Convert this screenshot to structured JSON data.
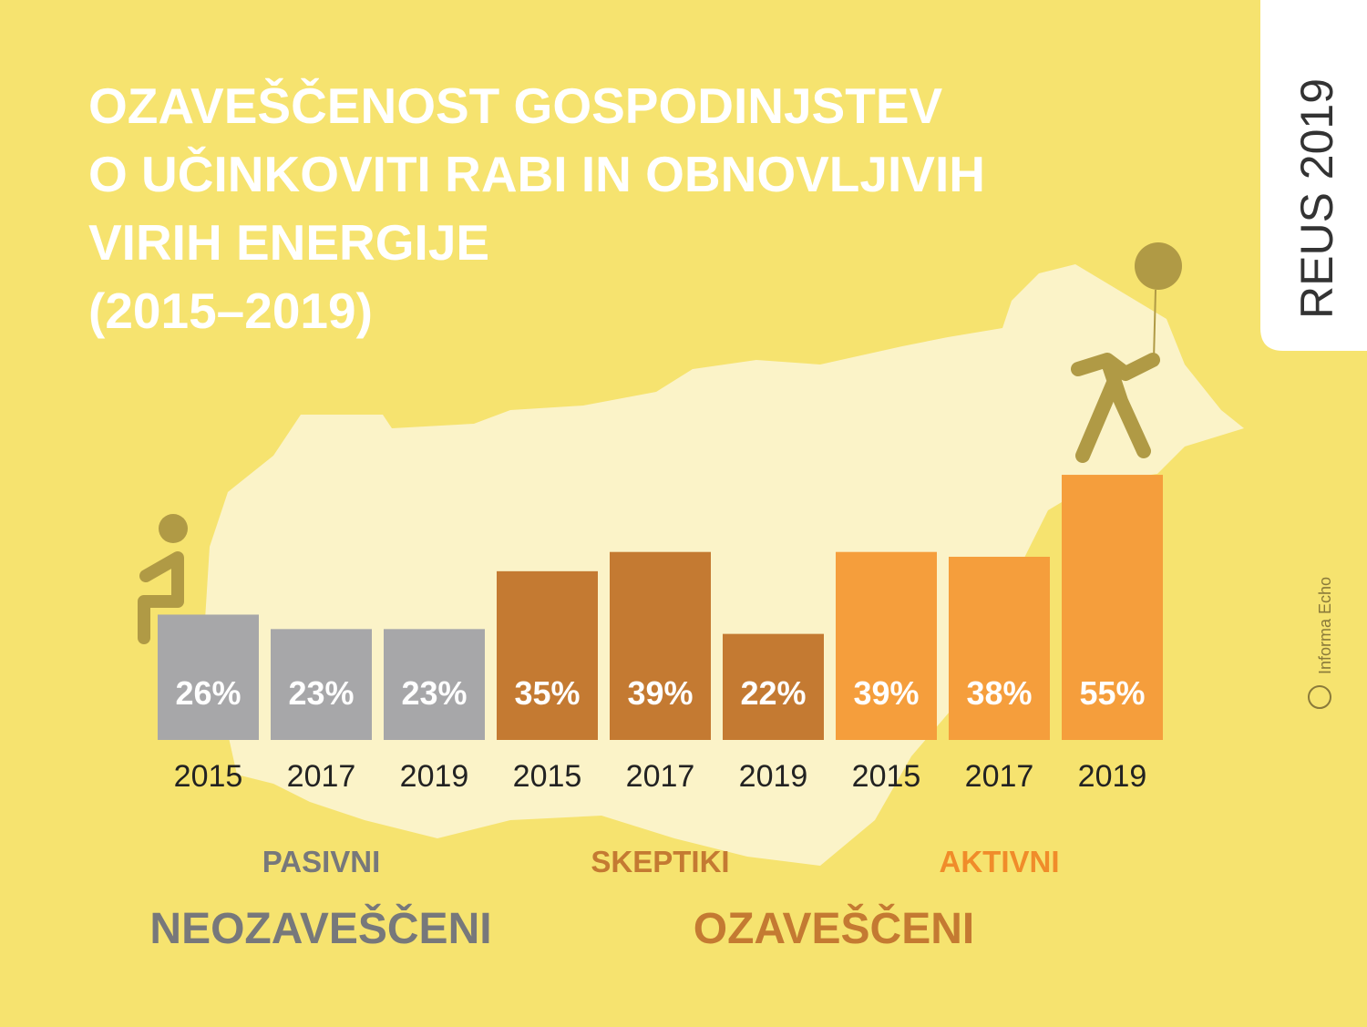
{
  "chart_data": {
    "type": "bar",
    "title": [
      "OZAVEŠČENOST GOSPODINJSTEV",
      "O UČINKOVITI RABI IN OBNOVLJIVIH",
      "VIRIH ENERGIJE",
      "(2015–2019)"
    ],
    "categories": [
      "2015",
      "2017",
      "2019"
    ],
    "series": [
      {
        "name": "PASIVNI",
        "color": "#a7a7a9",
        "name_color": "#77787b",
        "values": [
          26,
          23,
          23
        ],
        "value_labels": [
          "26%",
          "23%",
          "23%"
        ]
      },
      {
        "name": "SKEPTIKI",
        "color": "#c47a32",
        "name_color": "#c47a32",
        "values": [
          35,
          39,
          22
        ],
        "value_labels": [
          "35%",
          "39%",
          "22%"
        ]
      },
      {
        "name": "AKTIVNI",
        "color": "#f59e3c",
        "name_color": "#f08c2a",
        "values": [
          39,
          38,
          55
        ],
        "value_labels": [
          "39%",
          "38%",
          "55%"
        ]
      }
    ],
    "groups": [
      {
        "label": "NEOZAVEŠČENI",
        "color": "#77787b"
      },
      {
        "label": "OZAVEŠČENI",
        "color": "#c47a32"
      }
    ],
    "tab_label": "REUS 2019",
    "credit": "Informa Echo"
  }
}
